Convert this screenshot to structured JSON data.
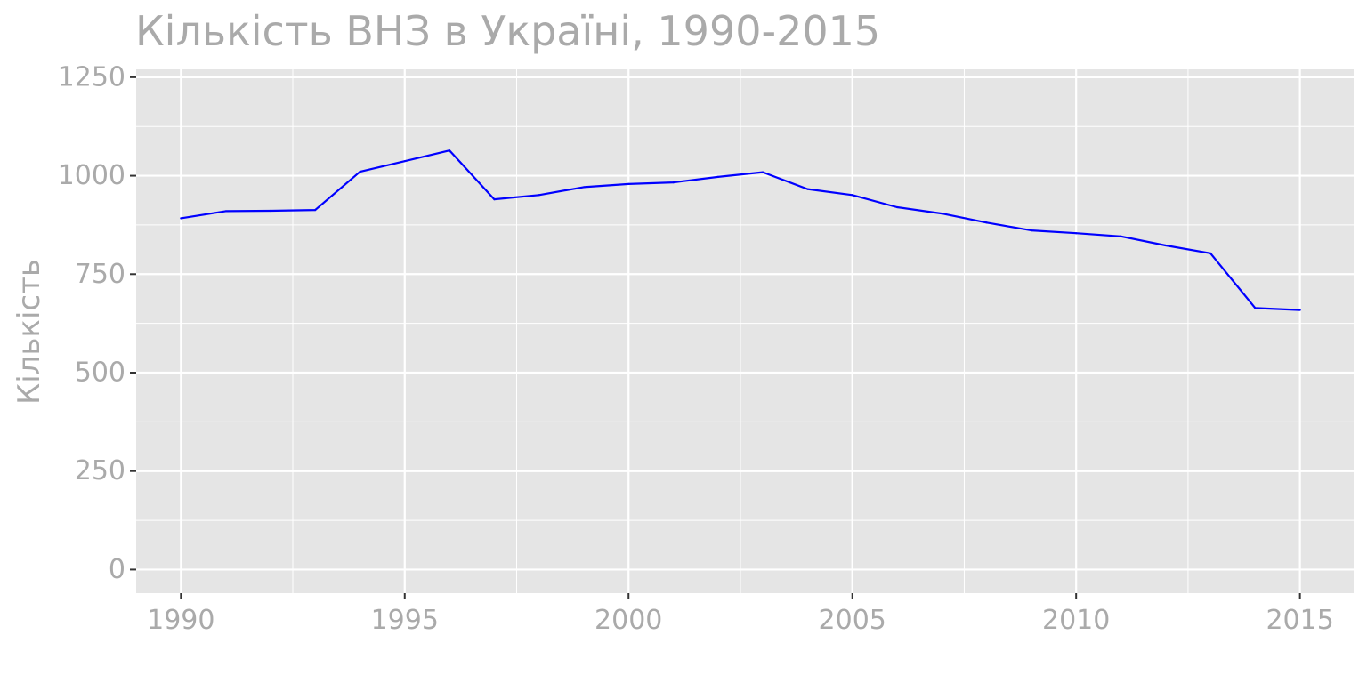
{
  "chart_data": {
    "type": "line",
    "title": "Кількість ВНЗ в Україні, 1990-2015",
    "xlabel": "",
    "ylabel": "Кількість",
    "xlim": [
      1989,
      2016.2
    ],
    "ylim": [
      -60,
      1270
    ],
    "x_ticks": [
      1990,
      1995,
      2000,
      2005,
      2010,
      2015
    ],
    "x_minor_ticks": [
      1992.5,
      1997.5,
      2002.5,
      2007.5,
      2012.5
    ],
    "y_ticks": [
      0,
      250,
      500,
      750,
      1000,
      1250
    ],
    "y_minor_ticks": [
      125,
      375,
      625,
      875,
      1125
    ],
    "grid": true,
    "legend": "none",
    "colors": {
      "panel": "#e5e5e5",
      "grid": "#ffffff",
      "line": "#0000ff",
      "text": "#aaaaaa",
      "tick": "#333333"
    },
    "series": [
      {
        "x": [
          1990,
          1991,
          1992,
          1993,
          1994,
          1995,
          1996,
          1997,
          1998,
          1999,
          2000,
          2001,
          2002,
          2003,
          2004,
          2005,
          2006,
          2007,
          2008,
          2009,
          2010,
          2011,
          2012,
          2013,
          2014,
          2015
        ],
        "values": [
          892,
          910,
          911,
          913,
          1010,
          1037,
          1064,
          940,
          951,
          971,
          979,
          983,
          997,
          1009,
          966,
          951,
          920,
          904,
          881,
          861,
          854,
          846,
          823,
          803,
          664,
          659
        ]
      }
    ]
  }
}
